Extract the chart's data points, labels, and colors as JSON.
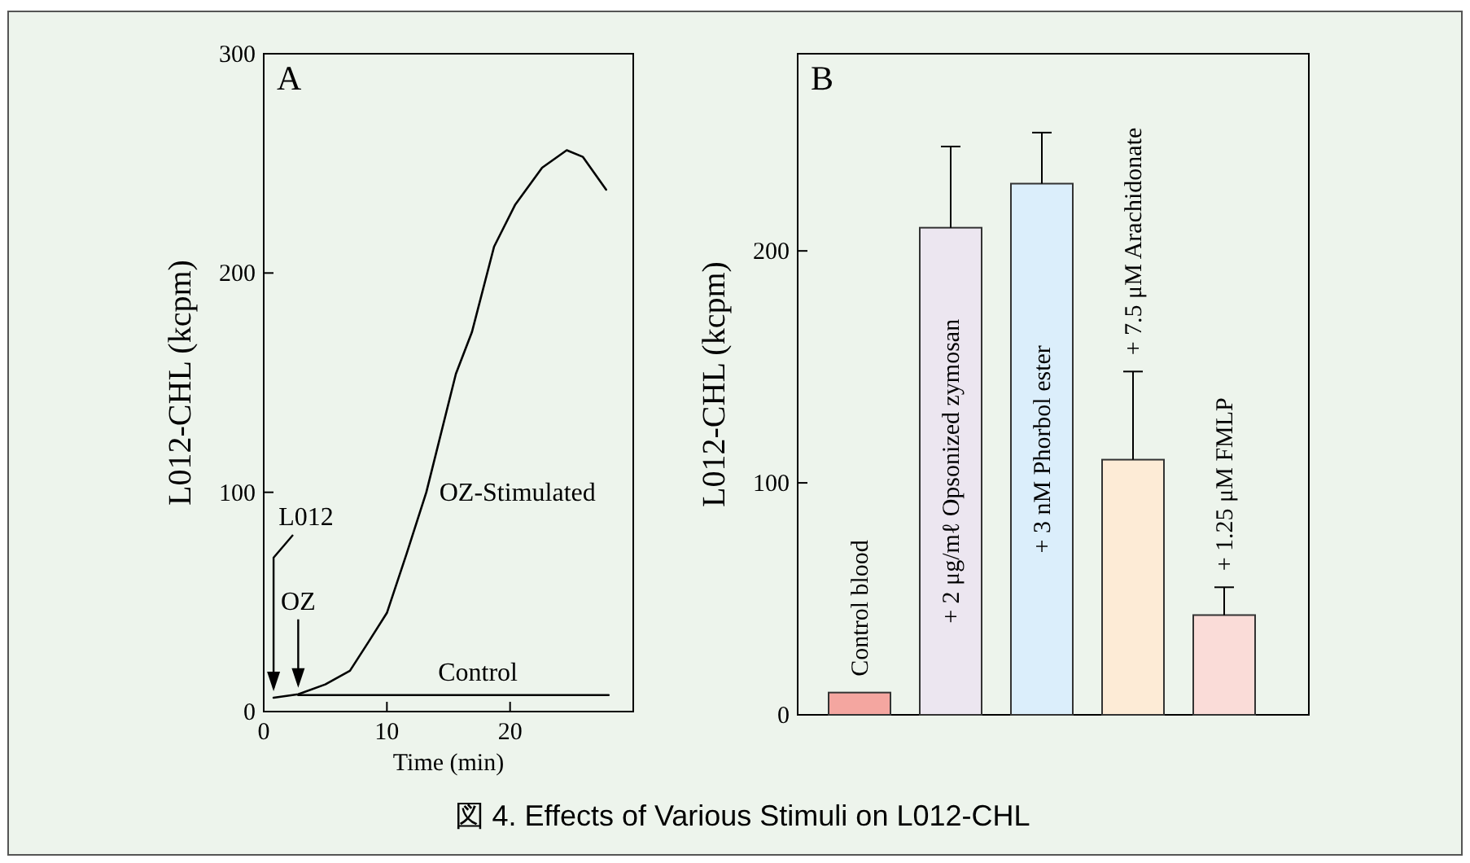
{
  "chart_data": [
    {
      "type": "line",
      "title": "A",
      "xlabel": "Time (min)",
      "ylabel": "L012-CHL (kcpm)",
      "xlim": [
        0,
        30
      ],
      "ylim": [
        0,
        300
      ],
      "xticks": [
        0,
        10,
        20
      ],
      "yticks": [
        0,
        100,
        200,
        300
      ],
      "marker": "none",
      "line_style": "solid",
      "series": [
        {
          "name": "OZ-Stimulated",
          "color": "#000000",
          "x": [
            0.8,
            2.8,
            5.0,
            7.0,
            8.5,
            10.0,
            11.6,
            13.2,
            15.6,
            16.9,
            18.7,
            20.4,
            22.6,
            24.6,
            25.9,
            27.8
          ],
          "values": [
            6.3,
            7.9,
            12.4,
            18.6,
            31.7,
            45,
            72,
            100,
            154,
            173,
            212,
            231,
            248,
            256,
            253,
            238
          ]
        },
        {
          "name": "Control",
          "color": "#000000",
          "x": [
            2.8,
            28.0
          ],
          "values": [
            7.5,
            7.5
          ]
        }
      ],
      "annotations": [
        {
          "text": "L012",
          "x": 0.8,
          "y": 6.3
        },
        {
          "text": "OZ",
          "x": 2.8,
          "y": 7.9
        },
        "図 4. Effects of Various Stimuli on L012-CHL"
      ]
    },
    {
      "type": "bar",
      "title": "B",
      "ylabel": "L012-CHL (kcpm)",
      "ylim": [
        0,
        285
      ],
      "yticks": [
        0,
        100,
        200
      ],
      "tick_labels": "y",
      "categories": [
        "Control blood",
        "+ 2 μg/mℓ Opsonized zymosan",
        "+ 3 nM Phorbol ester",
        "+ 7.5 μM Arachidonate",
        "+ 1.25 μM FMLP"
      ],
      "values": [
        9.6,
        210,
        229,
        110,
        43
      ],
      "colors": [
        "#f4a6a0",
        "#ece6f0",
        "#dbeefb",
        "#fdebd6",
        "#fadcd8"
      ],
      "errors": [
        null,
        [
          210,
          245
        ],
        [
          229,
          251
        ],
        [
          110,
          148
        ],
        [
          43,
          55
        ]
      ]
    }
  ]
}
